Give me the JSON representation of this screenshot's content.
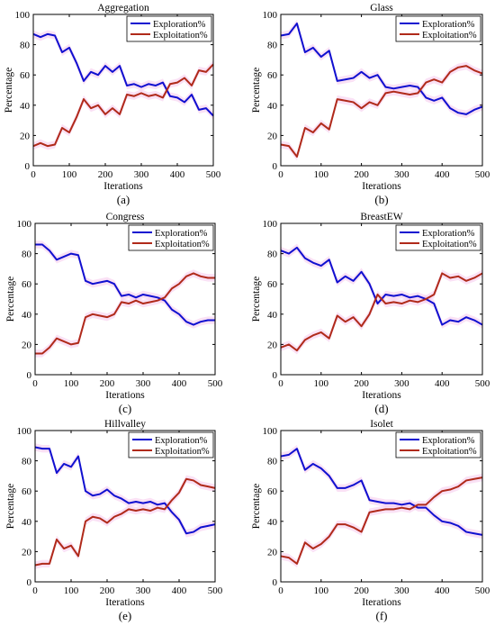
{
  "figure": {
    "xlabel": "Iterations",
    "ylabel": "Percentage",
    "legend_position": "top-right",
    "colors": {
      "exploration": "#1010d0",
      "exploitation": "#b02a1a",
      "shade": "#f6c8ec"
    }
  },
  "chart_data": [
    {
      "type": "line",
      "title": "Aggregation",
      "caption": "(a)",
      "xlabel": "Iterations",
      "ylabel": "Percentage",
      "xlim": [
        0,
        500
      ],
      "ylim": [
        0,
        100
      ],
      "xticks": [
        0,
        100,
        200,
        300,
        400,
        500
      ],
      "yticks": [
        0,
        20,
        40,
        60,
        80,
        100
      ],
      "legend": "top-right",
      "x": [
        0,
        20,
        40,
        60,
        80,
        100,
        120,
        140,
        160,
        180,
        200,
        220,
        240,
        260,
        280,
        300,
        320,
        340,
        360,
        380,
        400,
        420,
        440,
        460,
        480,
        500
      ],
      "series": [
        {
          "name": "Exploration%",
          "values": [
            87,
            85,
            87,
            86,
            75,
            78,
            68,
            56,
            62,
            60,
            66,
            62,
            66,
            53,
            54,
            52,
            54,
            53,
            55,
            46,
            45,
            42,
            47,
            37,
            38,
            33
          ]
        },
        {
          "name": "Exploitation%",
          "values": [
            13,
            15,
            13,
            14,
            25,
            22,
            32,
            44,
            38,
            40,
            34,
            38,
            34,
            47,
            46,
            48,
            46,
            47,
            45,
            54,
            55,
            58,
            53,
            63,
            62,
            67
          ]
        }
      ]
    },
    {
      "type": "line",
      "title": "Glass",
      "caption": "(b)",
      "xlabel": "Iterations",
      "ylabel": "Percentage",
      "xlim": [
        0,
        500
      ],
      "ylim": [
        0,
        100
      ],
      "xticks": [
        0,
        100,
        200,
        300,
        400,
        500
      ],
      "yticks": [
        0,
        20,
        40,
        60,
        80,
        100
      ],
      "legend": "top-right",
      "x": [
        0,
        20,
        40,
        60,
        80,
        100,
        120,
        140,
        160,
        180,
        200,
        220,
        240,
        260,
        280,
        300,
        320,
        340,
        360,
        380,
        400,
        420,
        440,
        460,
        480,
        500
      ],
      "series": [
        {
          "name": "Exploration%",
          "values": [
            86,
            87,
            94,
            75,
            78,
            72,
            76,
            56,
            57,
            58,
            62,
            58,
            60,
            52,
            51,
            52,
            53,
            52,
            45,
            43,
            45,
            38,
            35,
            34,
            37,
            39
          ]
        },
        {
          "name": "Exploitation%",
          "values": [
            14,
            13,
            6,
            25,
            22,
            28,
            24,
            44,
            43,
            42,
            38,
            42,
            40,
            48,
            49,
            48,
            47,
            48,
            55,
            57,
            55,
            62,
            65,
            66,
            63,
            61
          ]
        }
      ]
    },
    {
      "type": "line",
      "title": "Congress",
      "caption": "(c)",
      "xlabel": "Iterations",
      "ylabel": "Percentage",
      "xlim": [
        0,
        500
      ],
      "ylim": [
        0,
        100
      ],
      "xticks": [
        0,
        100,
        200,
        300,
        400,
        500
      ],
      "yticks": [
        0,
        20,
        40,
        60,
        80,
        100
      ],
      "legend": "top-right",
      "x": [
        0,
        20,
        40,
        60,
        80,
        100,
        120,
        140,
        160,
        180,
        200,
        220,
        240,
        260,
        280,
        300,
        320,
        340,
        360,
        380,
        400,
        420,
        440,
        460,
        480,
        500
      ],
      "series": [
        {
          "name": "Exploration%",
          "values": [
            86,
            86,
            82,
            76,
            78,
            80,
            79,
            62,
            60,
            61,
            62,
            60,
            52,
            53,
            51,
            53,
            52,
            51,
            49,
            43,
            40,
            35,
            33,
            35,
            36,
            36
          ]
        },
        {
          "name": "Exploitation%",
          "values": [
            14,
            14,
            18,
            24,
            22,
            20,
            21,
            38,
            40,
            39,
            38,
            40,
            48,
            47,
            49,
            47,
            48,
            49,
            51,
            57,
            60,
            65,
            67,
            65,
            64,
            64
          ]
        }
      ]
    },
    {
      "type": "line",
      "title": "BreastEW",
      "caption": "(d)",
      "xlabel": "Iterations",
      "ylabel": "Percentage",
      "xlim": [
        0,
        500
      ],
      "ylim": [
        0,
        100
      ],
      "xticks": [
        0,
        100,
        200,
        300,
        400,
        500
      ],
      "yticks": [
        0,
        20,
        40,
        60,
        80,
        100
      ],
      "legend": "top-right",
      "x": [
        0,
        20,
        40,
        60,
        80,
        100,
        120,
        140,
        160,
        180,
        200,
        220,
        240,
        260,
        280,
        300,
        320,
        340,
        360,
        380,
        400,
        420,
        440,
        460,
        480,
        500
      ],
      "series": [
        {
          "name": "Exploration%",
          "values": [
            82,
            80,
            84,
            77,
            74,
            72,
            76,
            61,
            65,
            62,
            68,
            60,
            47,
            53,
            52,
            53,
            51,
            52,
            50,
            47,
            33,
            36,
            35,
            38,
            36,
            33
          ]
        },
        {
          "name": "Exploitation%",
          "values": [
            18,
            20,
            16,
            23,
            26,
            28,
            24,
            39,
            35,
            38,
            32,
            40,
            53,
            47,
            48,
            47,
            49,
            48,
            50,
            53,
            67,
            64,
            65,
            62,
            64,
            67
          ]
        }
      ]
    },
    {
      "type": "line",
      "title": "Hillvalley",
      "caption": "(e)",
      "xlabel": "Iterations",
      "ylabel": "Percentage",
      "xlim": [
        0,
        500
      ],
      "ylim": [
        0,
        100
      ],
      "xticks": [
        0,
        100,
        200,
        300,
        400,
        500
      ],
      "yticks": [
        0,
        20,
        40,
        60,
        80,
        100
      ],
      "legend": "top-right",
      "x": [
        0,
        20,
        40,
        60,
        80,
        100,
        120,
        140,
        160,
        180,
        200,
        220,
        240,
        260,
        280,
        300,
        320,
        340,
        360,
        380,
        400,
        420,
        440,
        460,
        480,
        500
      ],
      "series": [
        {
          "name": "Exploration%",
          "values": [
            89,
            88,
            88,
            72,
            78,
            76,
            83,
            60,
            57,
            58,
            61,
            57,
            55,
            52,
            53,
            52,
            53,
            51,
            52,
            46,
            41,
            32,
            33,
            36,
            37,
            38
          ]
        },
        {
          "name": "Exploitation%",
          "values": [
            11,
            12,
            12,
            28,
            22,
            24,
            17,
            40,
            43,
            42,
            39,
            43,
            45,
            48,
            47,
            48,
            47,
            49,
            48,
            54,
            59,
            68,
            67,
            64,
            63,
            62
          ]
        }
      ]
    },
    {
      "type": "line",
      "title": "Isolet",
      "caption": "(f)",
      "xlabel": "Iterations",
      "ylabel": "Percentage",
      "xlim": [
        0,
        500
      ],
      "ylim": [
        0,
        100
      ],
      "xticks": [
        0,
        100,
        200,
        300,
        400,
        500
      ],
      "yticks": [
        0,
        20,
        40,
        60,
        80,
        100
      ],
      "legend": "top-right",
      "x": [
        0,
        20,
        40,
        60,
        80,
        100,
        120,
        140,
        160,
        180,
        200,
        220,
        240,
        260,
        280,
        300,
        320,
        340,
        360,
        380,
        400,
        420,
        440,
        460,
        480,
        500
      ],
      "series": [
        {
          "name": "Exploration%",
          "values": [
            83,
            84,
            88,
            74,
            78,
            75,
            70,
            62,
            62,
            64,
            67,
            54,
            53,
            52,
            52,
            51,
            52,
            49,
            49,
            44,
            40,
            39,
            37,
            33,
            32,
            31
          ]
        },
        {
          "name": "Exploitation%",
          "values": [
            17,
            16,
            12,
            26,
            22,
            25,
            30,
            38,
            38,
            36,
            33,
            46,
            47,
            48,
            48,
            49,
            48,
            51,
            51,
            56,
            60,
            61,
            63,
            67,
            68,
            69
          ]
        }
      ]
    }
  ]
}
